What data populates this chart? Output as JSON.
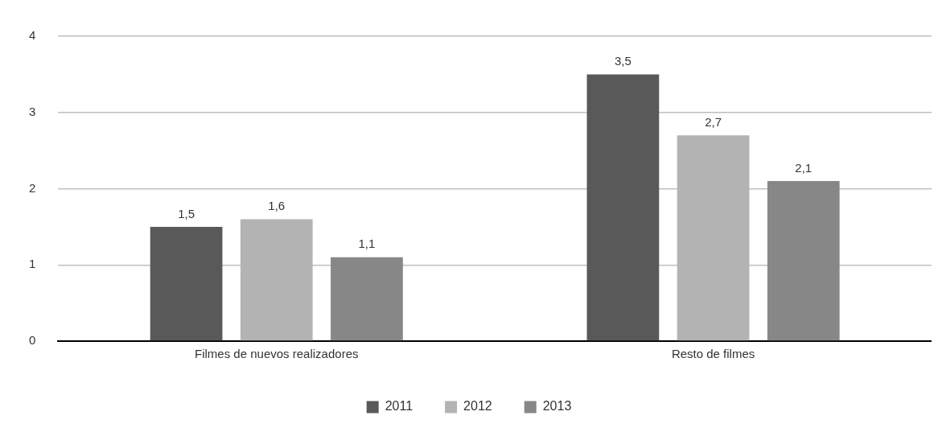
{
  "chart_data": {
    "type": "bar",
    "categories": [
      "Filmes de nuevos realizadores",
      "Resto de filmes"
    ],
    "series": [
      {
        "name": "2011",
        "color": "#595959",
        "values": [
          1.5,
          3.5
        ],
        "value_labels": [
          "1,5",
          "3,5"
        ]
      },
      {
        "name": "2012",
        "color": "#b3b3b3",
        "values": [
          1.6,
          2.7
        ],
        "value_labels": [
          "1,6",
          "2,7"
        ]
      },
      {
        "name": "2013",
        "color": "#878787",
        "values": [
          1.1,
          2.1
        ],
        "value_labels": [
          "1,1",
          "2,1"
        ]
      }
    ],
    "ylim": [
      0,
      4
    ],
    "yticks": [
      0,
      1,
      2,
      3,
      4
    ],
    "grid": "y",
    "legend": "bottom"
  }
}
